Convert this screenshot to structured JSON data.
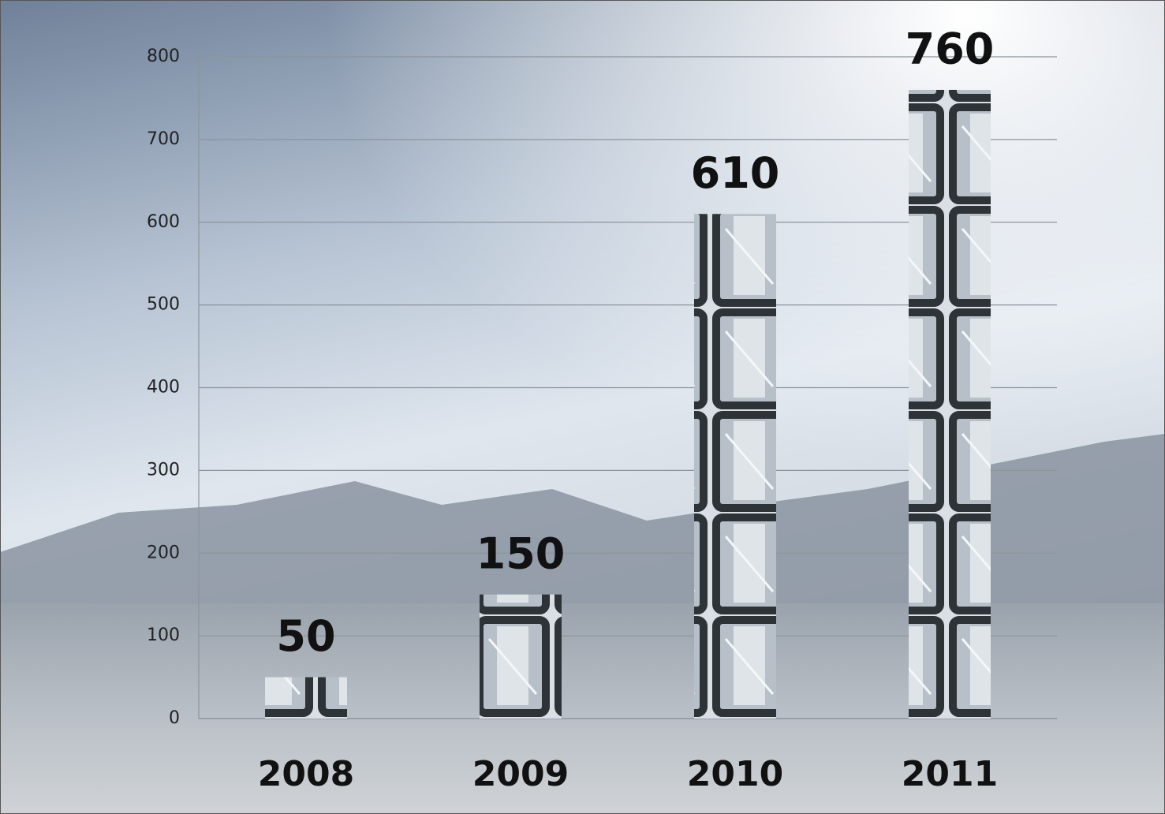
{
  "chart_data": {
    "type": "bar",
    "categories": [
      "2008",
      "2009",
      "2010",
      "2011"
    ],
    "values": [
      50,
      150,
      610,
      760
    ],
    "ylim": [
      0,
      800
    ],
    "yticks": [
      0,
      100,
      200,
      300,
      400,
      500,
      600,
      700,
      800
    ],
    "grid": true
  }
}
